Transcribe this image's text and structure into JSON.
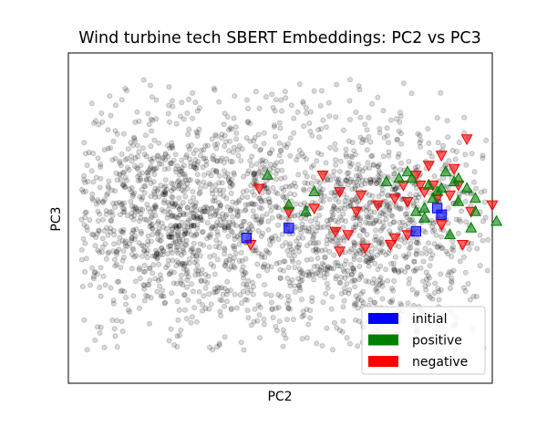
{
  "chart_data": {
    "type": "scatter",
    "title": "Wind turbine tech SBERT Embeddings: PC2 vs PC3",
    "xlabel": "PC2",
    "ylabel": "PC3",
    "xlim": [
      -0.5,
      0.5
    ],
    "ylim": [
      -0.5,
      0.5
    ],
    "ticks_visible": false,
    "grid": false,
    "legend_position": "lower-right",
    "background": {
      "description_color": "#000000",
      "alpha": 0.15,
      "approx_count": 2500
    },
    "series": [
      {
        "name": "initial",
        "marker": "square",
        "color": "#0000ff",
        "points": [
          [
            -0.08,
            -0.06
          ],
          [
            0.02,
            -0.03
          ],
          [
            0.32,
            -0.04
          ],
          [
            0.37,
            0.03
          ],
          [
            0.38,
            0.01
          ]
        ]
      },
      {
        "name": "positive",
        "marker": "triangle-up",
        "color": "#008000",
        "points": [
          [
            -0.03,
            0.13
          ],
          [
            0.06,
            0.02
          ],
          [
            0.08,
            0.08
          ],
          [
            0.02,
            0.04
          ],
          [
            0.25,
            0.11
          ],
          [
            0.3,
            0.14
          ],
          [
            0.28,
            0.12
          ],
          [
            0.31,
            0.12
          ],
          [
            0.35,
            0.1
          ],
          [
            0.37,
            0.08
          ],
          [
            0.41,
            0.11
          ],
          [
            0.44,
            0.09
          ],
          [
            0.42,
            0.12
          ],
          [
            0.38,
            0.09
          ],
          [
            0.36,
            0.06
          ],
          [
            0.42,
            0.05
          ],
          [
            0.46,
            0.06
          ],
          [
            0.34,
            0.03
          ],
          [
            0.34,
            0.0
          ],
          [
            0.4,
            -0.05
          ],
          [
            0.45,
            -0.03
          ],
          [
            0.46,
            0.02
          ],
          [
            0.51,
            -0.01
          ],
          [
            0.32,
            0.02
          ],
          [
            0.39,
            0.14
          ]
        ]
      },
      {
        "name": "negative",
        "marker": "triangle-down",
        "color": "#ff0000",
        "points": [
          [
            0.44,
            0.24
          ],
          [
            0.38,
            0.19
          ],
          [
            0.35,
            0.16
          ],
          [
            0.41,
            0.15
          ],
          [
            0.32,
            0.13
          ],
          [
            0.33,
            0.1
          ],
          [
            0.36,
            0.1
          ],
          [
            0.37,
            0.06
          ],
          [
            0.4,
            0.07
          ],
          [
            0.42,
            0.1
          ],
          [
            0.29,
            0.1
          ],
          [
            0.27,
            0.06
          ],
          [
            0.3,
            0.05
          ],
          [
            0.23,
            0.04
          ],
          [
            0.19,
            0.07
          ],
          [
            0.14,
            0.08
          ],
          [
            0.18,
            0.02
          ],
          [
            0.1,
            0.13
          ],
          [
            0.08,
            0.03
          ],
          [
            0.02,
            0.02
          ],
          [
            -0.05,
            0.09
          ],
          [
            -0.07,
            -0.08
          ],
          [
            0.13,
            -0.04
          ],
          [
            0.16,
            -0.05
          ],
          [
            0.27,
            -0.06
          ],
          [
            0.3,
            -0.05
          ],
          [
            0.2,
            -0.09
          ],
          [
            0.14,
            -0.1
          ],
          [
            0.26,
            -0.08
          ],
          [
            0.45,
            0.02
          ],
          [
            0.5,
            0.04
          ],
          [
            0.43,
            -0.08
          ],
          [
            0.38,
            -0.02
          ],
          [
            0.34,
            0.08
          ]
        ]
      }
    ]
  }
}
